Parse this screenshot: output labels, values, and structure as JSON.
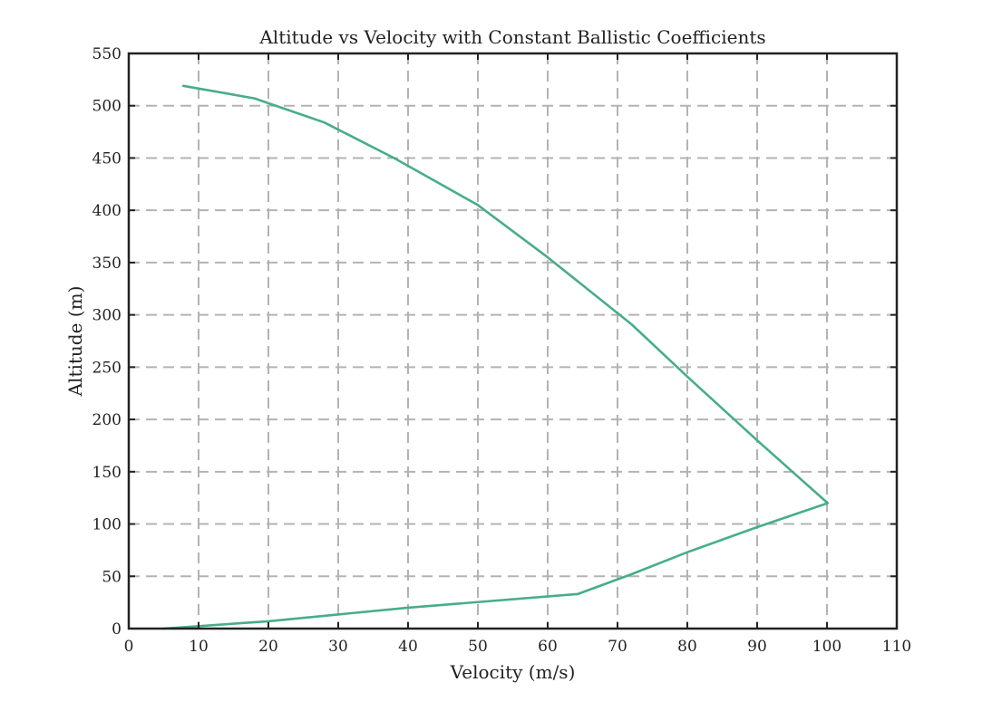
{
  "colors": {
    "series": "#47ad8a",
    "frame": "#222222",
    "grid": "#b3b3b3",
    "text": "#222222"
  },
  "chart_data": {
    "type": "line",
    "title": "Altitude vs Velocity with Constant Ballistic Coefficients",
    "xlabel": "Velocity (m/s)",
    "ylabel": "Altitude (m)",
    "xlim": [
      0,
      110
    ],
    "ylim": [
      0,
      550
    ],
    "xticks": [
      0,
      10,
      20,
      30,
      40,
      50,
      60,
      70,
      80,
      90,
      100,
      110
    ],
    "yticks": [
      0,
      50,
      100,
      150,
      200,
      250,
      300,
      350,
      400,
      450,
      500,
      550
    ],
    "grid": true,
    "legend": "none",
    "series": [
      {
        "x": [
          5,
          20,
          40,
          64.3,
          72,
          80,
          90,
          100.1,
          90,
          80,
          72,
          60,
          50,
          38,
          28,
          18,
          7.8
        ],
        "y": [
          0,
          7,
          20,
          33,
          52,
          73,
          97,
          120,
          180,
          241,
          291,
          355,
          405,
          450,
          484,
          507,
          519
        ]
      }
    ]
  }
}
